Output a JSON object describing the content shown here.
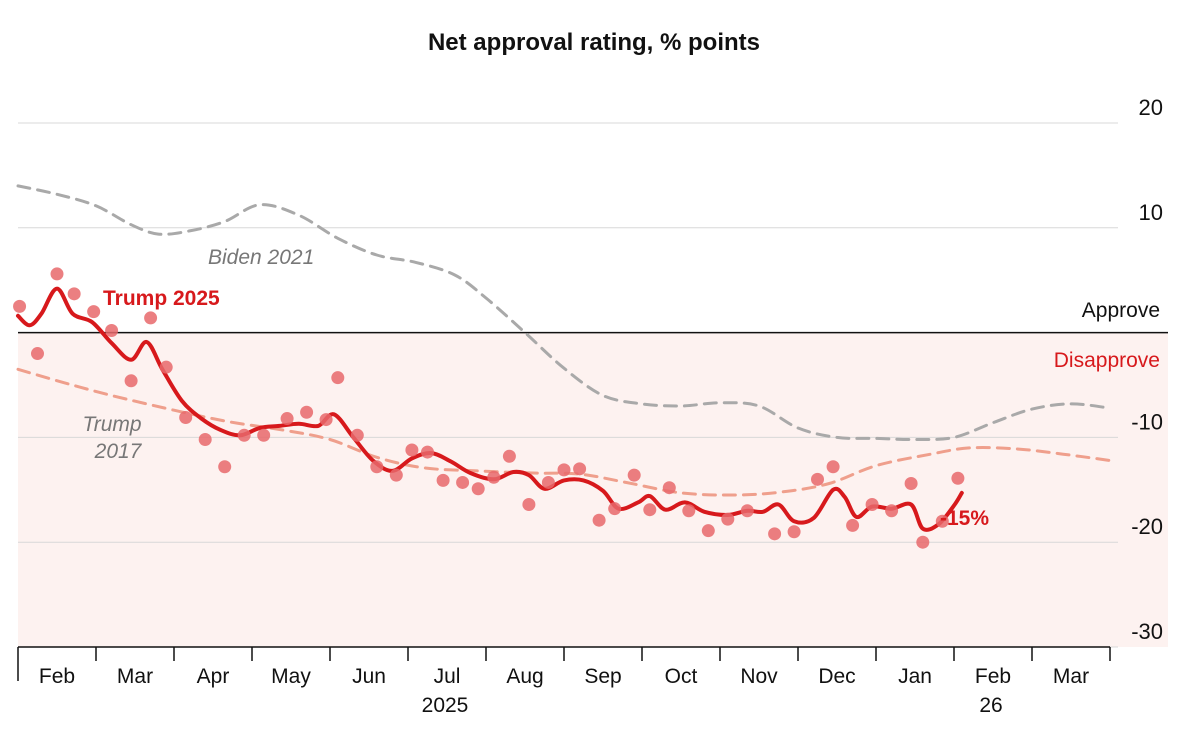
{
  "chart_data": {
    "type": "line",
    "title": "Net approval rating, % points",
    "ylim": [
      -30,
      20
    ],
    "yticks": [
      20,
      10,
      -10,
      -20,
      -30
    ],
    "zero_labels": {
      "above": "Approve",
      "below": "Disapprove"
    },
    "x_domain": [
      0,
      14
    ],
    "months": [
      {
        "label": "Feb",
        "x": 0.5
      },
      {
        "label": "Mar",
        "x": 1.5
      },
      {
        "label": "Apr",
        "x": 2.5
      },
      {
        "label": "May",
        "x": 3.5
      },
      {
        "label": "Jun",
        "x": 4.5
      },
      {
        "label": "Jul",
        "x": 5.5
      },
      {
        "label": "Aug",
        "x": 6.5
      },
      {
        "label": "Sep",
        "x": 7.5
      },
      {
        "label": "Oct",
        "x": 8.5
      },
      {
        "label": "Nov",
        "x": 9.5
      },
      {
        "label": "Dec",
        "x": 10.5
      },
      {
        "label": "Jan",
        "x": 11.5
      },
      {
        "label": "Feb",
        "x": 12.5
      },
      {
        "label": "Mar",
        "x": 13.5
      }
    ],
    "month_boundaries": [
      0,
      1,
      2,
      3,
      4,
      5,
      6,
      7,
      8,
      9,
      10,
      11,
      12,
      13,
      14
    ],
    "year_labels": [
      {
        "label": "2025",
        "x": 5.5
      },
      {
        "label": "26",
        "x": 12.5
      }
    ],
    "colors": {
      "trump2025": "#d7191c",
      "trump2025_dots": "#e8696b",
      "trump2017": "#ef9f8c",
      "biden2021": "#a9a9a9",
      "disapprove_bg": "#fdf2f0",
      "approve_label": "#111111",
      "disapprove_label": "#d7191c"
    },
    "series": [
      {
        "name": "Trump 2025",
        "label": "Trump 2025",
        "style": "solid",
        "end_label": "-15%",
        "points": [
          [
            0,
            1.6
          ],
          [
            0.15,
            0.7
          ],
          [
            0.3,
            1.8
          ],
          [
            0.5,
            4.2
          ],
          [
            0.7,
            1.8
          ],
          [
            0.95,
            1.0
          ],
          [
            1.2,
            -1.0
          ],
          [
            1.45,
            -2.6
          ],
          [
            1.65,
            -0.9
          ],
          [
            1.85,
            -3.5
          ],
          [
            2.1,
            -6.5
          ],
          [
            2.35,
            -8.2
          ],
          [
            2.6,
            -9.3
          ],
          [
            2.85,
            -9.8
          ],
          [
            3.1,
            -9.1
          ],
          [
            3.35,
            -8.9
          ],
          [
            3.6,
            -8.7
          ],
          [
            3.85,
            -8.9
          ],
          [
            4.05,
            -7.8
          ],
          [
            4.3,
            -10.0
          ],
          [
            4.55,
            -12.2
          ],
          [
            4.8,
            -13.2
          ],
          [
            5.05,
            -12.0
          ],
          [
            5.3,
            -11.5
          ],
          [
            5.55,
            -12.3
          ],
          [
            5.8,
            -13.4
          ],
          [
            6.1,
            -14.0
          ],
          [
            6.35,
            -13.3
          ],
          [
            6.55,
            -13.6
          ],
          [
            6.75,
            -14.9
          ],
          [
            7.0,
            -14.1
          ],
          [
            7.25,
            -14.1
          ],
          [
            7.5,
            -15.1
          ],
          [
            7.7,
            -16.8
          ],
          [
            7.95,
            -16.2
          ],
          [
            8.1,
            -15.6
          ],
          [
            8.3,
            -16.9
          ],
          [
            8.55,
            -16.2
          ],
          [
            8.8,
            -17.1
          ],
          [
            9.1,
            -17.4
          ],
          [
            9.35,
            -17.0
          ],
          [
            9.55,
            -17.1
          ],
          [
            9.75,
            -16.4
          ],
          [
            9.95,
            -18.0
          ],
          [
            10.2,
            -17.7
          ],
          [
            10.45,
            -15.0
          ],
          [
            10.6,
            -15.7
          ],
          [
            10.75,
            -17.6
          ],
          [
            10.95,
            -16.6
          ],
          [
            11.2,
            -16.8
          ],
          [
            11.45,
            -16.4
          ],
          [
            11.6,
            -18.7
          ],
          [
            11.8,
            -18.3
          ],
          [
            12.0,
            -16.5
          ],
          [
            12.1,
            -15.3
          ]
        ],
        "dots": [
          [
            0.02,
            2.5
          ],
          [
            0.25,
            -2.0
          ],
          [
            0.5,
            5.6
          ],
          [
            0.72,
            3.7
          ],
          [
            0.97,
            2.0
          ],
          [
            1.2,
            0.2
          ],
          [
            1.45,
            -4.6
          ],
          [
            1.7,
            1.4
          ],
          [
            1.9,
            -3.3
          ],
          [
            2.15,
            -8.1
          ],
          [
            2.4,
            -10.2
          ],
          [
            2.65,
            -12.8
          ],
          [
            2.9,
            -9.8
          ],
          [
            3.15,
            -9.8
          ],
          [
            3.45,
            -8.2
          ],
          [
            3.7,
            -7.6
          ],
          [
            3.95,
            -8.3
          ],
          [
            4.1,
            -4.3
          ],
          [
            4.35,
            -9.8
          ],
          [
            4.6,
            -12.8
          ],
          [
            4.85,
            -13.6
          ],
          [
            5.05,
            -11.2
          ],
          [
            5.25,
            -11.4
          ],
          [
            5.45,
            -14.1
          ],
          [
            5.7,
            -14.3
          ],
          [
            5.9,
            -14.9
          ],
          [
            6.1,
            -13.8
          ],
          [
            6.3,
            -11.8
          ],
          [
            6.55,
            -16.4
          ],
          [
            6.8,
            -14.3
          ],
          [
            7.0,
            -13.1
          ],
          [
            7.2,
            -13.0
          ],
          [
            7.45,
            -17.9
          ],
          [
            7.65,
            -16.8
          ],
          [
            7.9,
            -13.6
          ],
          [
            8.1,
            -16.9
          ],
          [
            8.35,
            -14.8
          ],
          [
            8.6,
            -17.0
          ],
          [
            8.85,
            -18.9
          ],
          [
            9.1,
            -17.8
          ],
          [
            9.35,
            -17.0
          ],
          [
            9.7,
            -19.2
          ],
          [
            9.95,
            -19.0
          ],
          [
            10.25,
            -14.0
          ],
          [
            10.45,
            -12.8
          ],
          [
            10.7,
            -18.4
          ],
          [
            10.95,
            -16.4
          ],
          [
            11.2,
            -17.0
          ],
          [
            11.45,
            -14.4
          ],
          [
            11.6,
            -20.0
          ],
          [
            11.85,
            -18.0
          ],
          [
            12.05,
            -13.9
          ]
        ]
      },
      {
        "name": "Trump 2017",
        "label_lines": [
          "Trump",
          "2017"
        ],
        "style": "dashed",
        "points": [
          [
            0,
            -3.5
          ],
          [
            0.6,
            -4.8
          ],
          [
            1.2,
            -6.0
          ],
          [
            2.0,
            -7.4
          ],
          [
            2.7,
            -8.5
          ],
          [
            3.4,
            -9.3
          ],
          [
            4.0,
            -10.2
          ],
          [
            4.6,
            -11.9
          ],
          [
            5.2,
            -12.9
          ],
          [
            5.9,
            -13.2
          ],
          [
            6.6,
            -13.4
          ],
          [
            7.2,
            -13.5
          ],
          [
            7.8,
            -14.3
          ],
          [
            8.5,
            -15.3
          ],
          [
            9.2,
            -15.5
          ],
          [
            9.8,
            -15.2
          ],
          [
            10.4,
            -14.4
          ],
          [
            11.0,
            -12.7
          ],
          [
            11.7,
            -11.6
          ],
          [
            12.2,
            -11.0
          ],
          [
            12.8,
            -11.1
          ],
          [
            13.4,
            -11.6
          ],
          [
            14.0,
            -12.2
          ]
        ]
      },
      {
        "name": "Biden 2021",
        "label": "Biden 2021",
        "style": "dashed",
        "points": [
          [
            0,
            14.0
          ],
          [
            0.5,
            13.2
          ],
          [
            1.0,
            12.1
          ],
          [
            1.45,
            10.3
          ],
          [
            1.8,
            9.4
          ],
          [
            2.2,
            9.7
          ],
          [
            2.65,
            10.6
          ],
          [
            3.1,
            12.2
          ],
          [
            3.6,
            11.2
          ],
          [
            4.1,
            9.0
          ],
          [
            4.6,
            7.4
          ],
          [
            5.1,
            6.7
          ],
          [
            5.6,
            5.5
          ],
          [
            6.0,
            3.3
          ],
          [
            6.5,
            0.0
          ],
          [
            7.0,
            -3.4
          ],
          [
            7.5,
            -6.0
          ],
          [
            8.0,
            -6.8
          ],
          [
            8.5,
            -7.0
          ],
          [
            9.0,
            -6.7
          ],
          [
            9.5,
            -7.0
          ],
          [
            10.0,
            -9.1
          ],
          [
            10.5,
            -10.0
          ],
          [
            11.0,
            -10.1
          ],
          [
            11.5,
            -10.2
          ],
          [
            12.0,
            -10.0
          ],
          [
            12.5,
            -8.6
          ],
          [
            13.0,
            -7.3
          ],
          [
            13.5,
            -6.8
          ],
          [
            14.0,
            -7.2
          ]
        ]
      }
    ]
  }
}
